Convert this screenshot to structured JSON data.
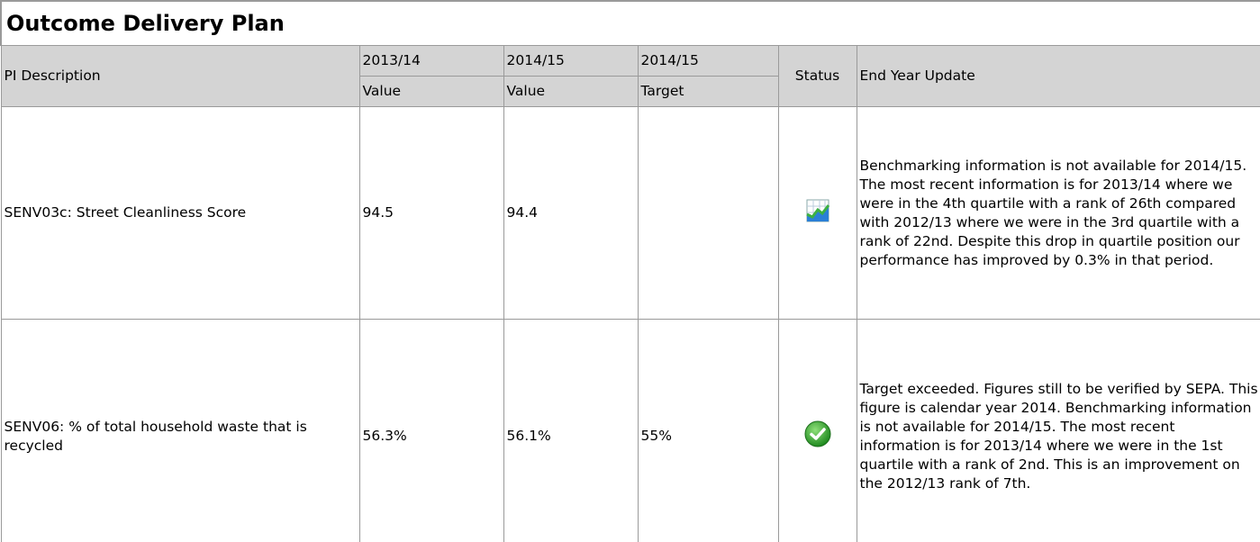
{
  "title": "Outcome Delivery Plan",
  "table": {
    "header": {
      "description": "PI Description",
      "columns": [
        {
          "year": "2013/14",
          "kind": "Value"
        },
        {
          "year": "2014/15",
          "kind": "Value"
        },
        {
          "year": "2014/15",
          "kind": "Target"
        }
      ],
      "status": "Status",
      "update": "End Year Update"
    },
    "rows": [
      {
        "description": "SENV03c: Street Cleanliness Score",
        "cells": [
          "94.5",
          "94.4"
        ],
        "update": "Benchmarking information is not available for 2014/15. The most recent information is for 2013/14 where we were in the 4th quartile with a rank of 26th compared with 2012/13 where we were in the 3rd quartile with a rank of 22nd. Despite this drop in quartile position our performance has improved by 0.3% in that period."
      },
      {
        "description": "SENV06: % of total household waste that is recycled",
        "cells": [
          "56.3%",
          "56.1%",
          "55%"
        ],
        "update": "Target exceeded. Figures still to be verified by SEPA. This figure is calendar year 2014. Benchmarking information is not available for 2014/15. The most recent information is for 2013/14 where we were in the 1st quartile with a rank of 2nd. This is an improvement on the 2012/13 rank of 7th."
      }
    ]
  }
}
